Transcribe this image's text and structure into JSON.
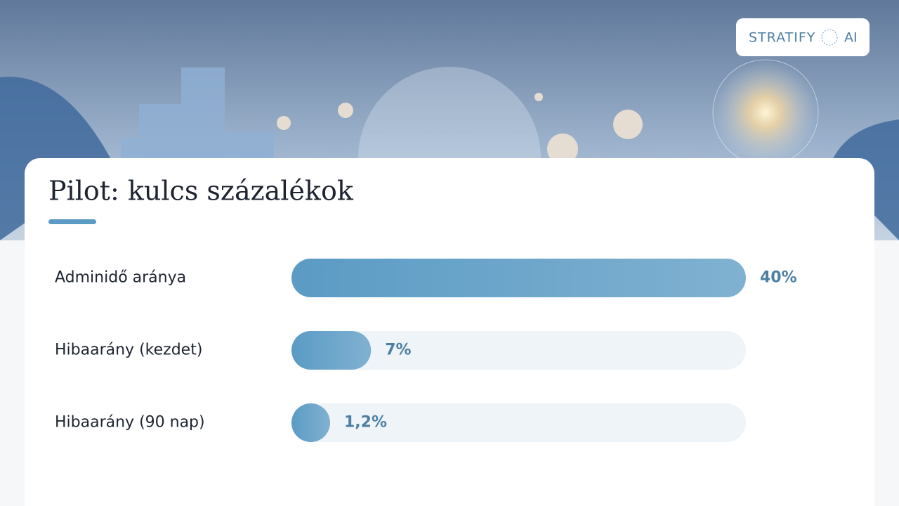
{
  "logo": {
    "name": "STRATIFY",
    "suffix": "AI"
  },
  "chart_data": {
    "type": "bar",
    "orientation": "horizontal",
    "title": "Pilot: kulcs százalékok",
    "categories": [
      "Adminidő aránya",
      "Hibaarány (kezdet)",
      "Hibaarány (90 nap)"
    ],
    "values": [
      40,
      7,
      1.2
    ],
    "value_labels": [
      "40%",
      "7%",
      "1,2%"
    ],
    "color": "#5b9bc4",
    "track_color": "#eef4f8",
    "xlim": [
      0,
      40
    ]
  }
}
